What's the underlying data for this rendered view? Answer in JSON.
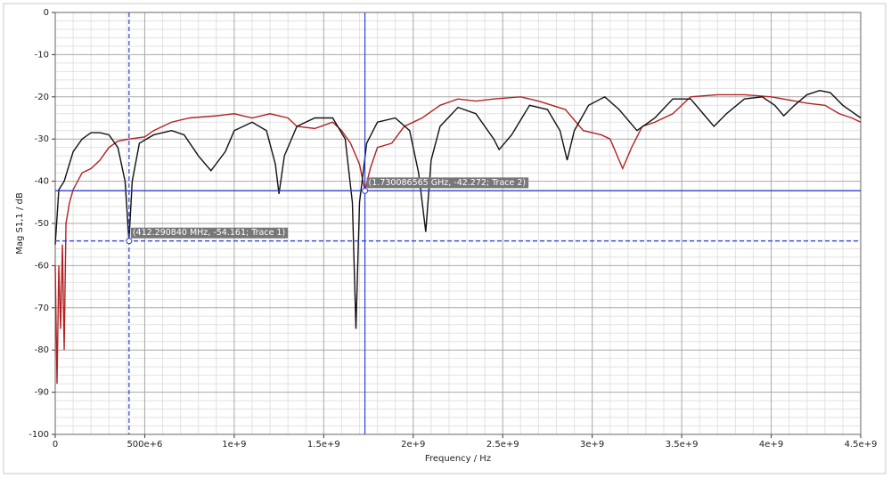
{
  "chart_data": {
    "type": "line",
    "xlabel": "Frequency / Hz",
    "ylabel": "Mag S1,1 / dB",
    "xlim": [
      0,
      4500000000
    ],
    "ylim": [
      -100,
      0
    ],
    "xticks": [
      0,
      {
        "value": 500000000,
        "label": "500e+6"
      },
      {
        "value": 1000000000,
        "label": "1e+9"
      },
      {
        "value": 1500000000,
        "label": "1.5e+9"
      },
      {
        "value": 2000000000,
        "label": "2e+9"
      },
      {
        "value": 2500000000,
        "label": "2.5e+9"
      },
      {
        "value": 3000000000,
        "label": "3e+9"
      },
      {
        "value": 3500000000,
        "label": "3.5e+9"
      },
      {
        "value": 4000000000,
        "label": "4e+9"
      },
      {
        "value": 4500000000,
        "label": "4.5e+9"
      }
    ],
    "yticks": [
      0,
      -10,
      -20,
      -30,
      -40,
      -50,
      -60,
      -70,
      -80,
      -90,
      -100
    ],
    "grid": true,
    "series": [
      {
        "name": "Trace 1",
        "color": "#111111",
        "x": [
          0,
          20000000,
          50000000,
          100000000,
          150000000,
          200000000,
          250000000,
          300000000,
          350000000,
          390000000,
          412000000,
          430000000,
          470000000,
          550000000,
          650000000,
          720000000,
          800000000,
          870000000,
          950000000,
          1000000000,
          1100000000,
          1180000000,
          1230000000,
          1250000000,
          1280000000,
          1350000000,
          1450000000,
          1550000000,
          1620000000,
          1660000000,
          1680000000,
          1700000000,
          1740000000,
          1800000000,
          1900000000,
          1980000000,
          2030000000,
          2070000000,
          2100000000,
          2150000000,
          2250000000,
          2350000000,
          2450000000,
          2480000000,
          2550000000,
          2650000000,
          2750000000,
          2820000000,
          2860000000,
          2900000000,
          2980000000,
          3070000000,
          3150000000,
          3250000000,
          3350000000,
          3450000000,
          3550000000,
          3620000000,
          3680000000,
          3750000000,
          3850000000,
          3950000000,
          4020000000,
          4070000000,
          4130000000,
          4200000000,
          4270000000,
          4330000000,
          4400000000,
          4500000000
        ],
        "values": [
          -55,
          -42,
          -40,
          -33,
          -30,
          -28.5,
          -28.5,
          -29,
          -32,
          -40,
          -54,
          -40,
          -31,
          -29,
          -28,
          -29,
          -34,
          -37.5,
          -33,
          -28,
          -26,
          -28,
          -36,
          -43,
          -34,
          -27,
          -25,
          -25,
          -30,
          -45,
          -75,
          -45,
          -31,
          -26,
          -25,
          -28,
          -38,
          -52,
          -35,
          -27,
          -22.5,
          -24,
          -30,
          -32.5,
          -29,
          -22,
          -23,
          -28,
          -35,
          -28,
          -22,
          -20,
          -23,
          -28,
          -25,
          -20.5,
          -20.5,
          -24,
          -27,
          -24,
          -20.5,
          -20,
          -22,
          -24.5,
          -22,
          -19.5,
          -18.5,
          -19,
          -22,
          -25
        ]
      },
      {
        "name": "Trace 2",
        "color": "#b22222",
        "x": [
          0,
          10000000,
          20000000,
          30000000,
          40000000,
          50000000,
          60000000,
          80000000,
          100000000,
          150000000,
          200000000,
          250000000,
          300000000,
          350000000,
          412000000,
          500000000,
          550000000,
          650000000,
          750000000,
          900000000,
          1000000000,
          1100000000,
          1200000000,
          1300000000,
          1350000000,
          1450000000,
          1550000000,
          1600000000,
          1650000000,
          1700000000,
          1730000000,
          1760000000,
          1800000000,
          1880000000,
          1950000000,
          2050000000,
          2150000000,
          2250000000,
          2350000000,
          2450000000,
          2600000000,
          2700000000,
          2850000000,
          2950000000,
          3050000000,
          3100000000,
          3170000000,
          3220000000,
          3280000000,
          3350000000,
          3450000000,
          3550000000,
          3700000000,
          3850000000,
          4000000000,
          4200000000,
          4300000000,
          4380000000,
          4450000000,
          4500000000
        ],
        "values": [
          -60,
          -88,
          -60,
          -75,
          -55,
          -80,
          -50,
          -45,
          -42,
          -38,
          -37,
          -35,
          -32,
          -30.5,
          -30,
          -29.5,
          -28,
          -26,
          -25,
          -24.5,
          -24,
          -25,
          -24,
          -25,
          -27,
          -27.5,
          -26,
          -28,
          -31,
          -36,
          -42.3,
          -37,
          -32,
          -31,
          -27,
          -25,
          -22,
          -20.5,
          -21,
          -20.5,
          -20,
          -21,
          -23,
          -28,
          -29,
          -30,
          -37,
          -32,
          -27,
          -26,
          -24,
          -20,
          -19.5,
          -19.5,
          -20,
          -21.5,
          -22,
          -24,
          -25,
          -26
        ]
      }
    ],
    "markers": [
      {
        "x": 412290840,
        "y": -54.161,
        "label": "(412.290840 MHz, -54.161; Trace 1)",
        "dashed": true
      },
      {
        "x": 1730086565,
        "y": -42.272,
        "label": "(1.730086565 GHz, -42.272; Trace 2)",
        "dashed": false
      }
    ]
  }
}
